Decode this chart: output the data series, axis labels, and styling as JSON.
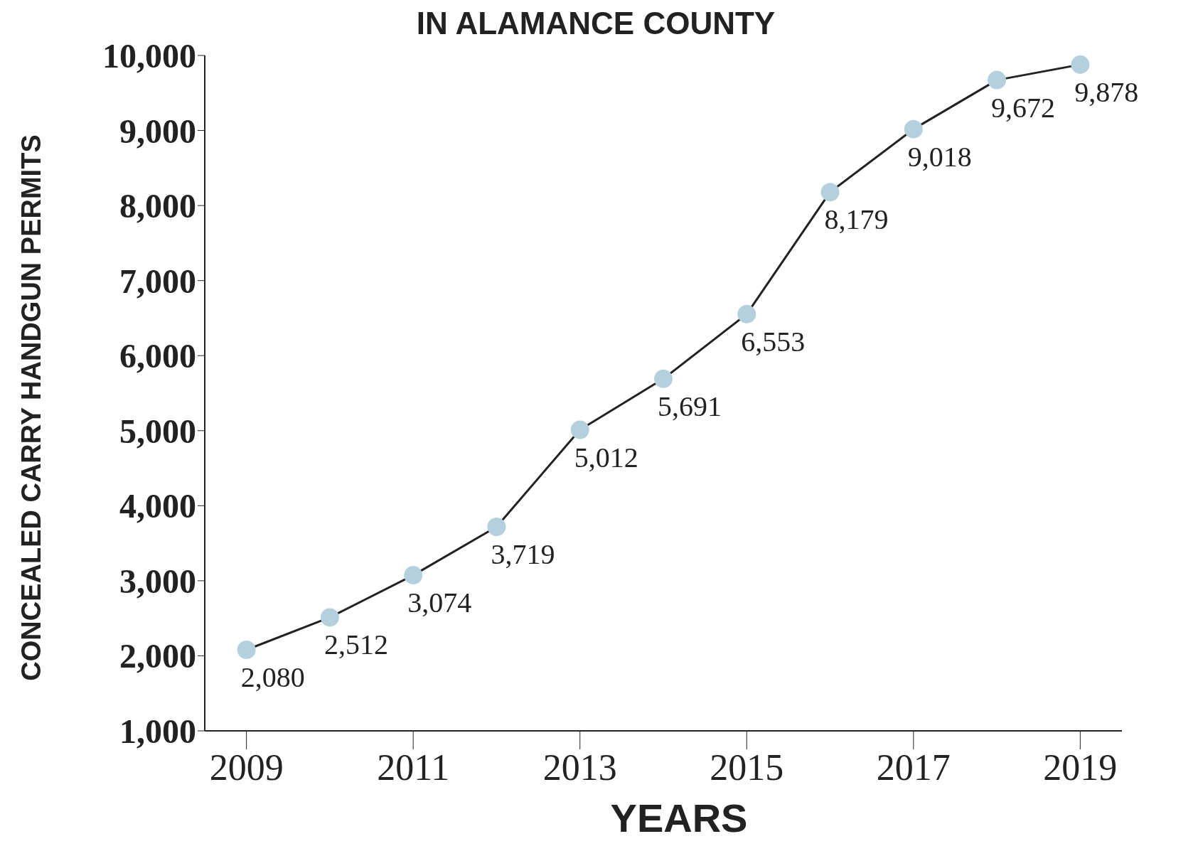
{
  "chart_data": {
    "type": "line",
    "title": "IN ALAMANCE COUNTY",
    "xlabel": "YEARS",
    "ylabel": "CONCEALED CARRY HANDGUN PERMITS",
    "x": [
      2009,
      2010,
      2011,
      2012,
      2013,
      2014,
      2015,
      2016,
      2017,
      2018,
      2019
    ],
    "series": [
      {
        "color": "#b4cfdd",
        "values": [
          2080,
          2512,
          3074,
          3719,
          5012,
          5691,
          6553,
          8179,
          9018,
          9672,
          9878
        ],
        "value_labels": [
          "2,080",
          "2,512",
          "3,074",
          "3,719",
          "5,012",
          "5,691",
          "6,553",
          "8,179",
          "9,018",
          "9,672",
          "9,878"
        ]
      }
    ],
    "xlim": [
      2008.5,
      2019.5
    ],
    "xticks": [
      2009,
      2011,
      2013,
      2015,
      2017,
      2019
    ],
    "ylim": [
      1000,
      10000
    ],
    "yticks": [
      {
        "value": 1000,
        "label": "1,000"
      },
      {
        "value": 2000,
        "label": "2,000"
      },
      {
        "value": 3000,
        "label": "3,000"
      },
      {
        "value": 4000,
        "label": "4,000"
      },
      {
        "value": 5000,
        "label": "5,000"
      },
      {
        "value": 6000,
        "label": "6,000"
      },
      {
        "value": 7000,
        "label": "7,000"
      },
      {
        "value": 8000,
        "label": "8,000"
      },
      {
        "value": 9000,
        "label": "9,000"
      },
      {
        "value": 10000,
        "label": "10,000"
      }
    ],
    "grid": false,
    "legend": false,
    "marker": "circle",
    "line_style": "solid"
  }
}
